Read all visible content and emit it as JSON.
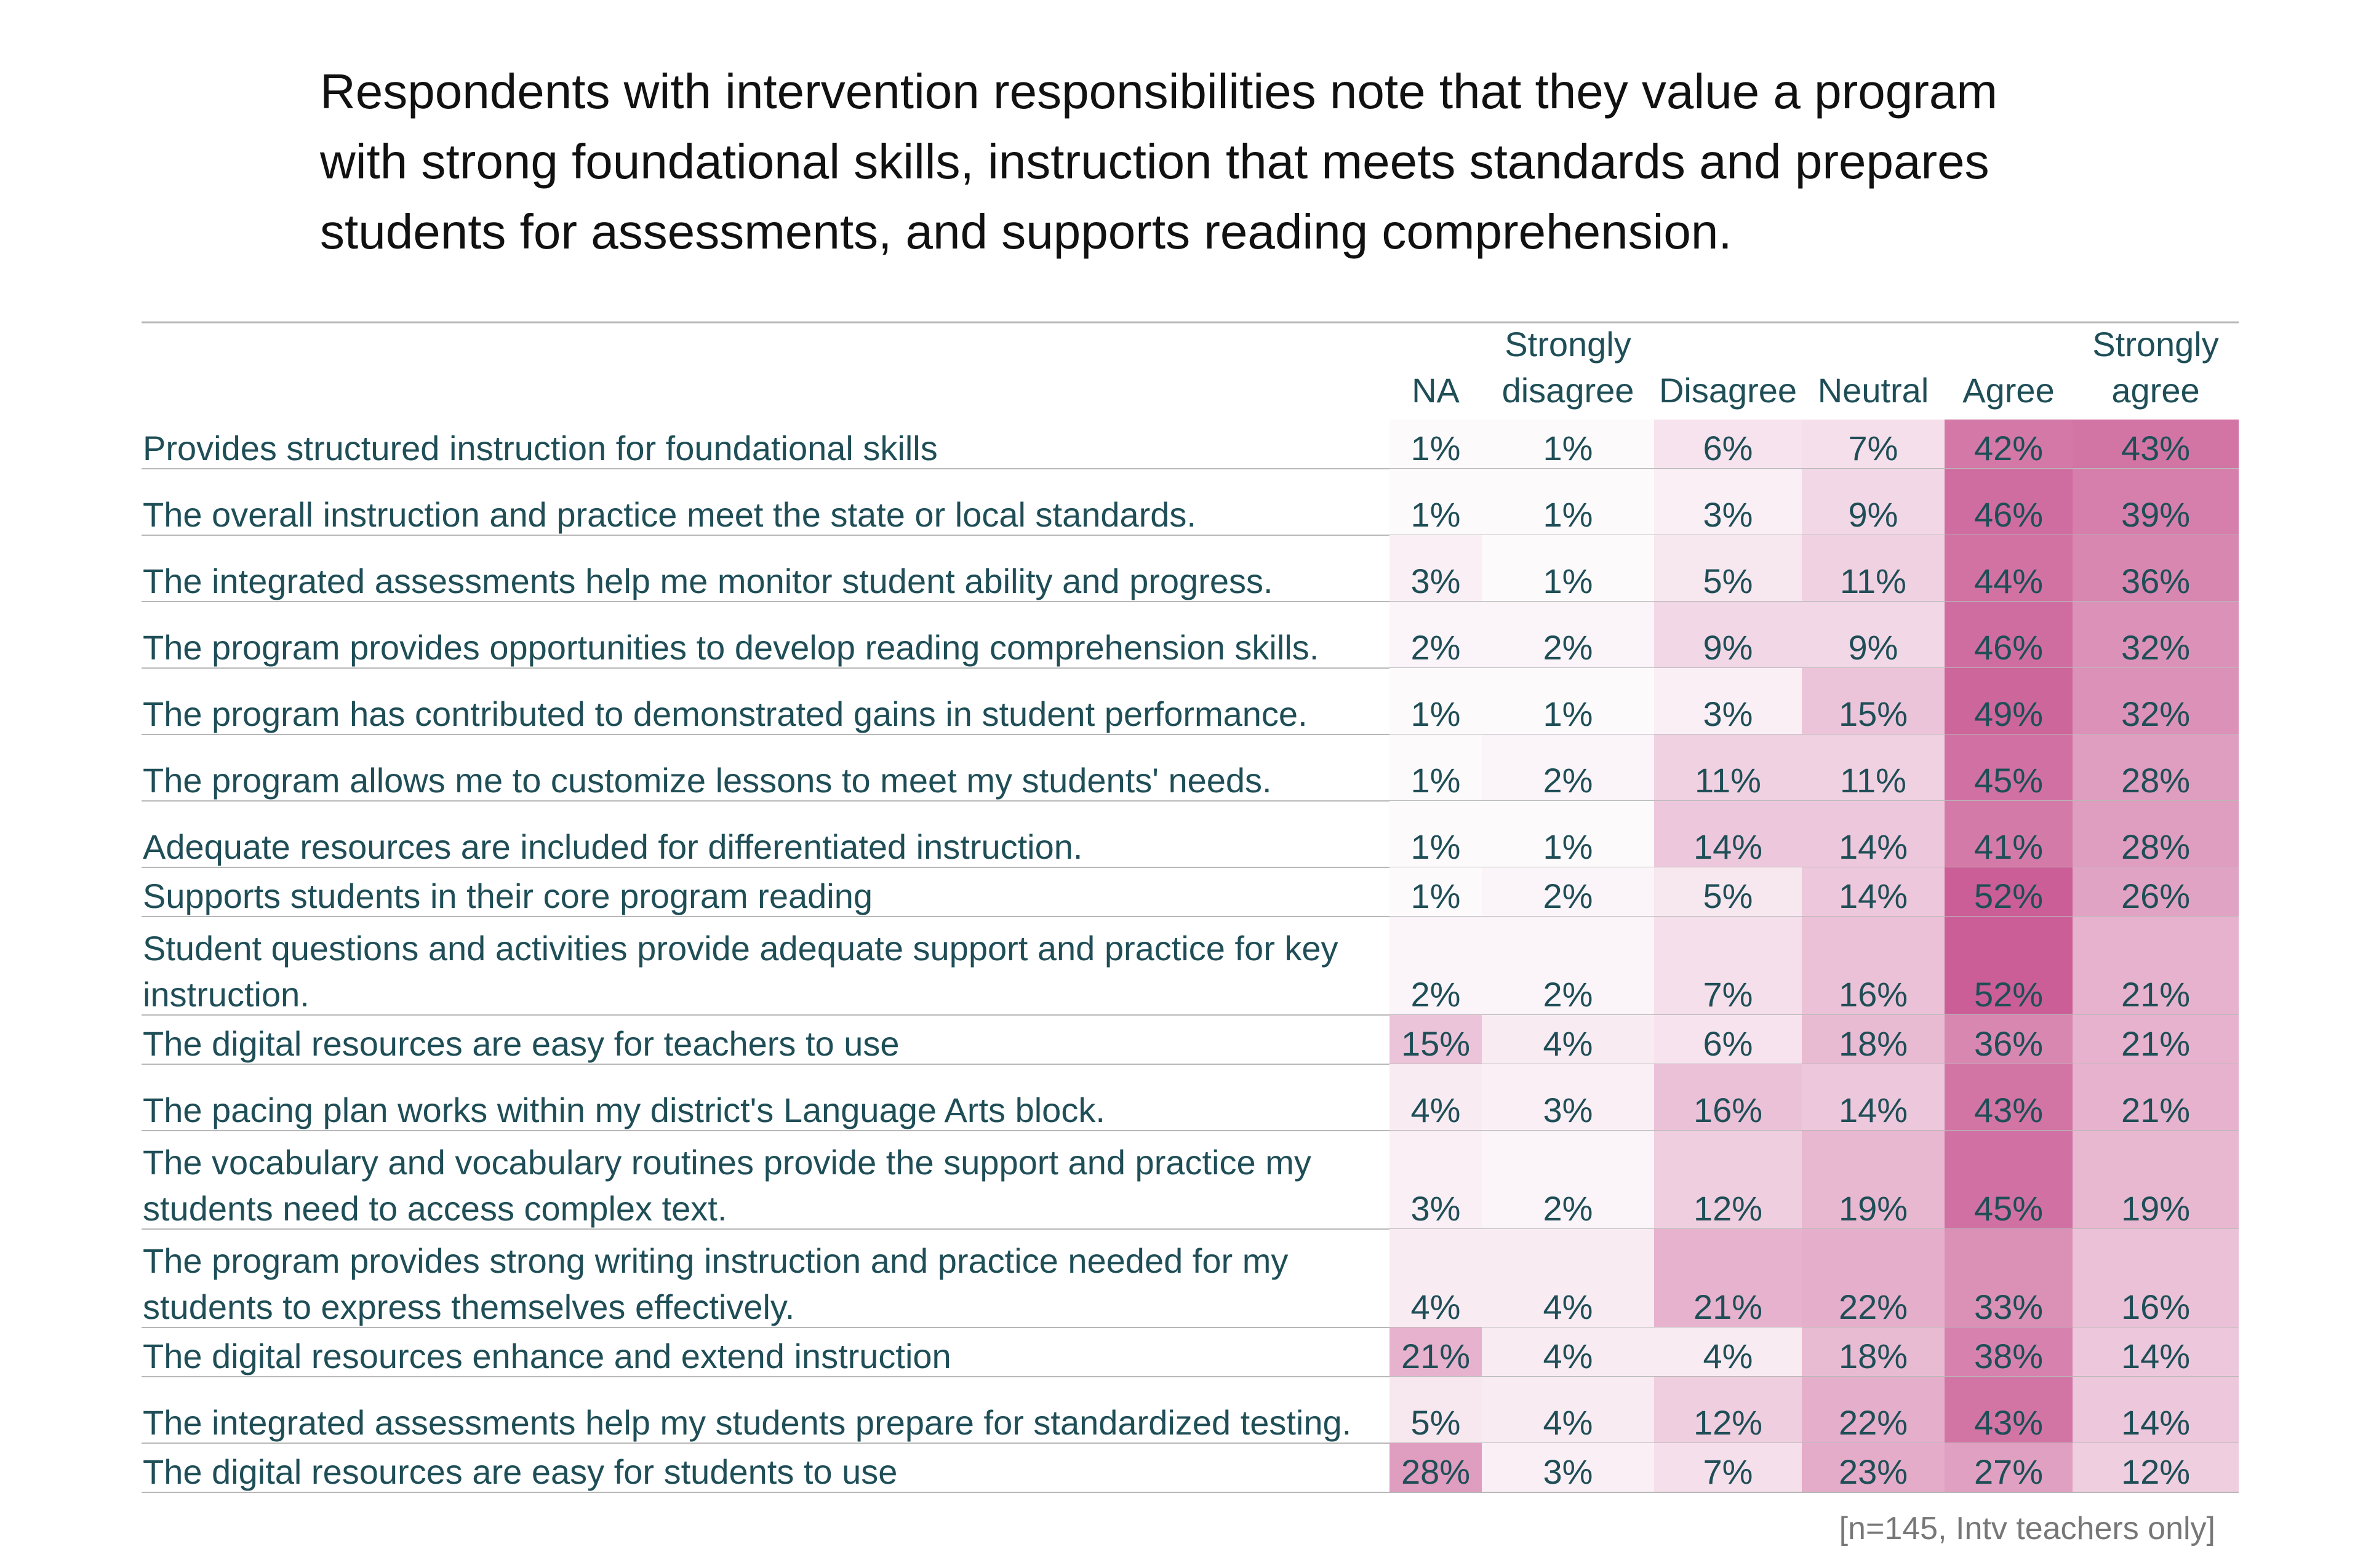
{
  "title_lines": [
    "Respondents with intervention responsibilities note that they value a program",
    "with strong foundational skills, instruction that meets standards and prepares",
    "students for assessments,  and supports reading comprehension."
  ],
  "footnote": "[n=145, Intv teachers only]",
  "colors": {
    "text": "#1f4e57",
    "cell_max": "#cb5e96",
    "rule": "#b8b8b8"
  },
  "chart_data": {
    "type": "heatmap",
    "unit": "%",
    "columns": [
      [
        "NA"
      ],
      [
        "Strongly",
        "disagree"
      ],
      [
        "Disagree"
      ],
      [
        "Neutral"
      ],
      [
        "Agree"
      ],
      [
        "Strongly",
        "agree"
      ]
    ],
    "rows": [
      {
        "label": [
          "Provides structured instruction for foundational skills"
        ],
        "values": [
          1,
          1,
          6,
          7,
          42,
          43
        ]
      },
      {
        "label": [
          "The overall instruction and practice meet the state or local standards."
        ],
        "values": [
          1,
          1,
          3,
          9,
          46,
          39
        ]
      },
      {
        "label": [
          "The integrated assessments help me monitor student ability and progress."
        ],
        "values": [
          3,
          1,
          5,
          11,
          44,
          36
        ]
      },
      {
        "label": [
          "The program provides opportunities to develop reading comprehension skills."
        ],
        "values": [
          2,
          2,
          9,
          9,
          46,
          32
        ]
      },
      {
        "label": [
          "The program has contributed to demonstrated gains in student performance."
        ],
        "values": [
          1,
          1,
          3,
          15,
          49,
          32
        ]
      },
      {
        "label": [
          "The program allows me to customize lessons to meet my students' needs."
        ],
        "values": [
          1,
          2,
          11,
          11,
          45,
          28
        ]
      },
      {
        "label": [
          "Adequate resources are included for differentiated instruction."
        ],
        "values": [
          1,
          1,
          14,
          14,
          41,
          28
        ]
      },
      {
        "label": [
          "Supports students in their core program reading"
        ],
        "values": [
          1,
          2,
          5,
          14,
          52,
          26
        ]
      },
      {
        "label": [
          "Student questions and activities provide adequate support and practice for key",
          "instruction."
        ],
        "values": [
          2,
          2,
          7,
          16,
          52,
          21
        ]
      },
      {
        "label": [
          "The digital resources are easy for teachers to use"
        ],
        "values": [
          15,
          4,
          6,
          18,
          36,
          21
        ]
      },
      {
        "label": [
          "The pacing plan works within my district's Language Arts block."
        ],
        "values": [
          4,
          3,
          16,
          14,
          43,
          21
        ]
      },
      {
        "label": [
          "The vocabulary and vocabulary routines provide the support and practice my",
          "students need to access complex text."
        ],
        "values": [
          3,
          2,
          12,
          19,
          45,
          19
        ]
      },
      {
        "label": [
          "The program provides strong writing instruction and practice needed for my",
          "students to express themselves effectively."
        ],
        "values": [
          4,
          4,
          21,
          22,
          33,
          16
        ]
      },
      {
        "label": [
          "The digital resources enhance and extend  instruction"
        ],
        "values": [
          21,
          4,
          4,
          18,
          38,
          14
        ]
      },
      {
        "label": [
          "The integrated assessments help my students prepare for standardized testing."
        ],
        "values": [
          5,
          4,
          12,
          22,
          43,
          14
        ]
      },
      {
        "label": [
          "The digital resources are easy for students to use"
        ],
        "values": [
          28,
          3,
          7,
          23,
          27,
          12
        ]
      }
    ]
  }
}
